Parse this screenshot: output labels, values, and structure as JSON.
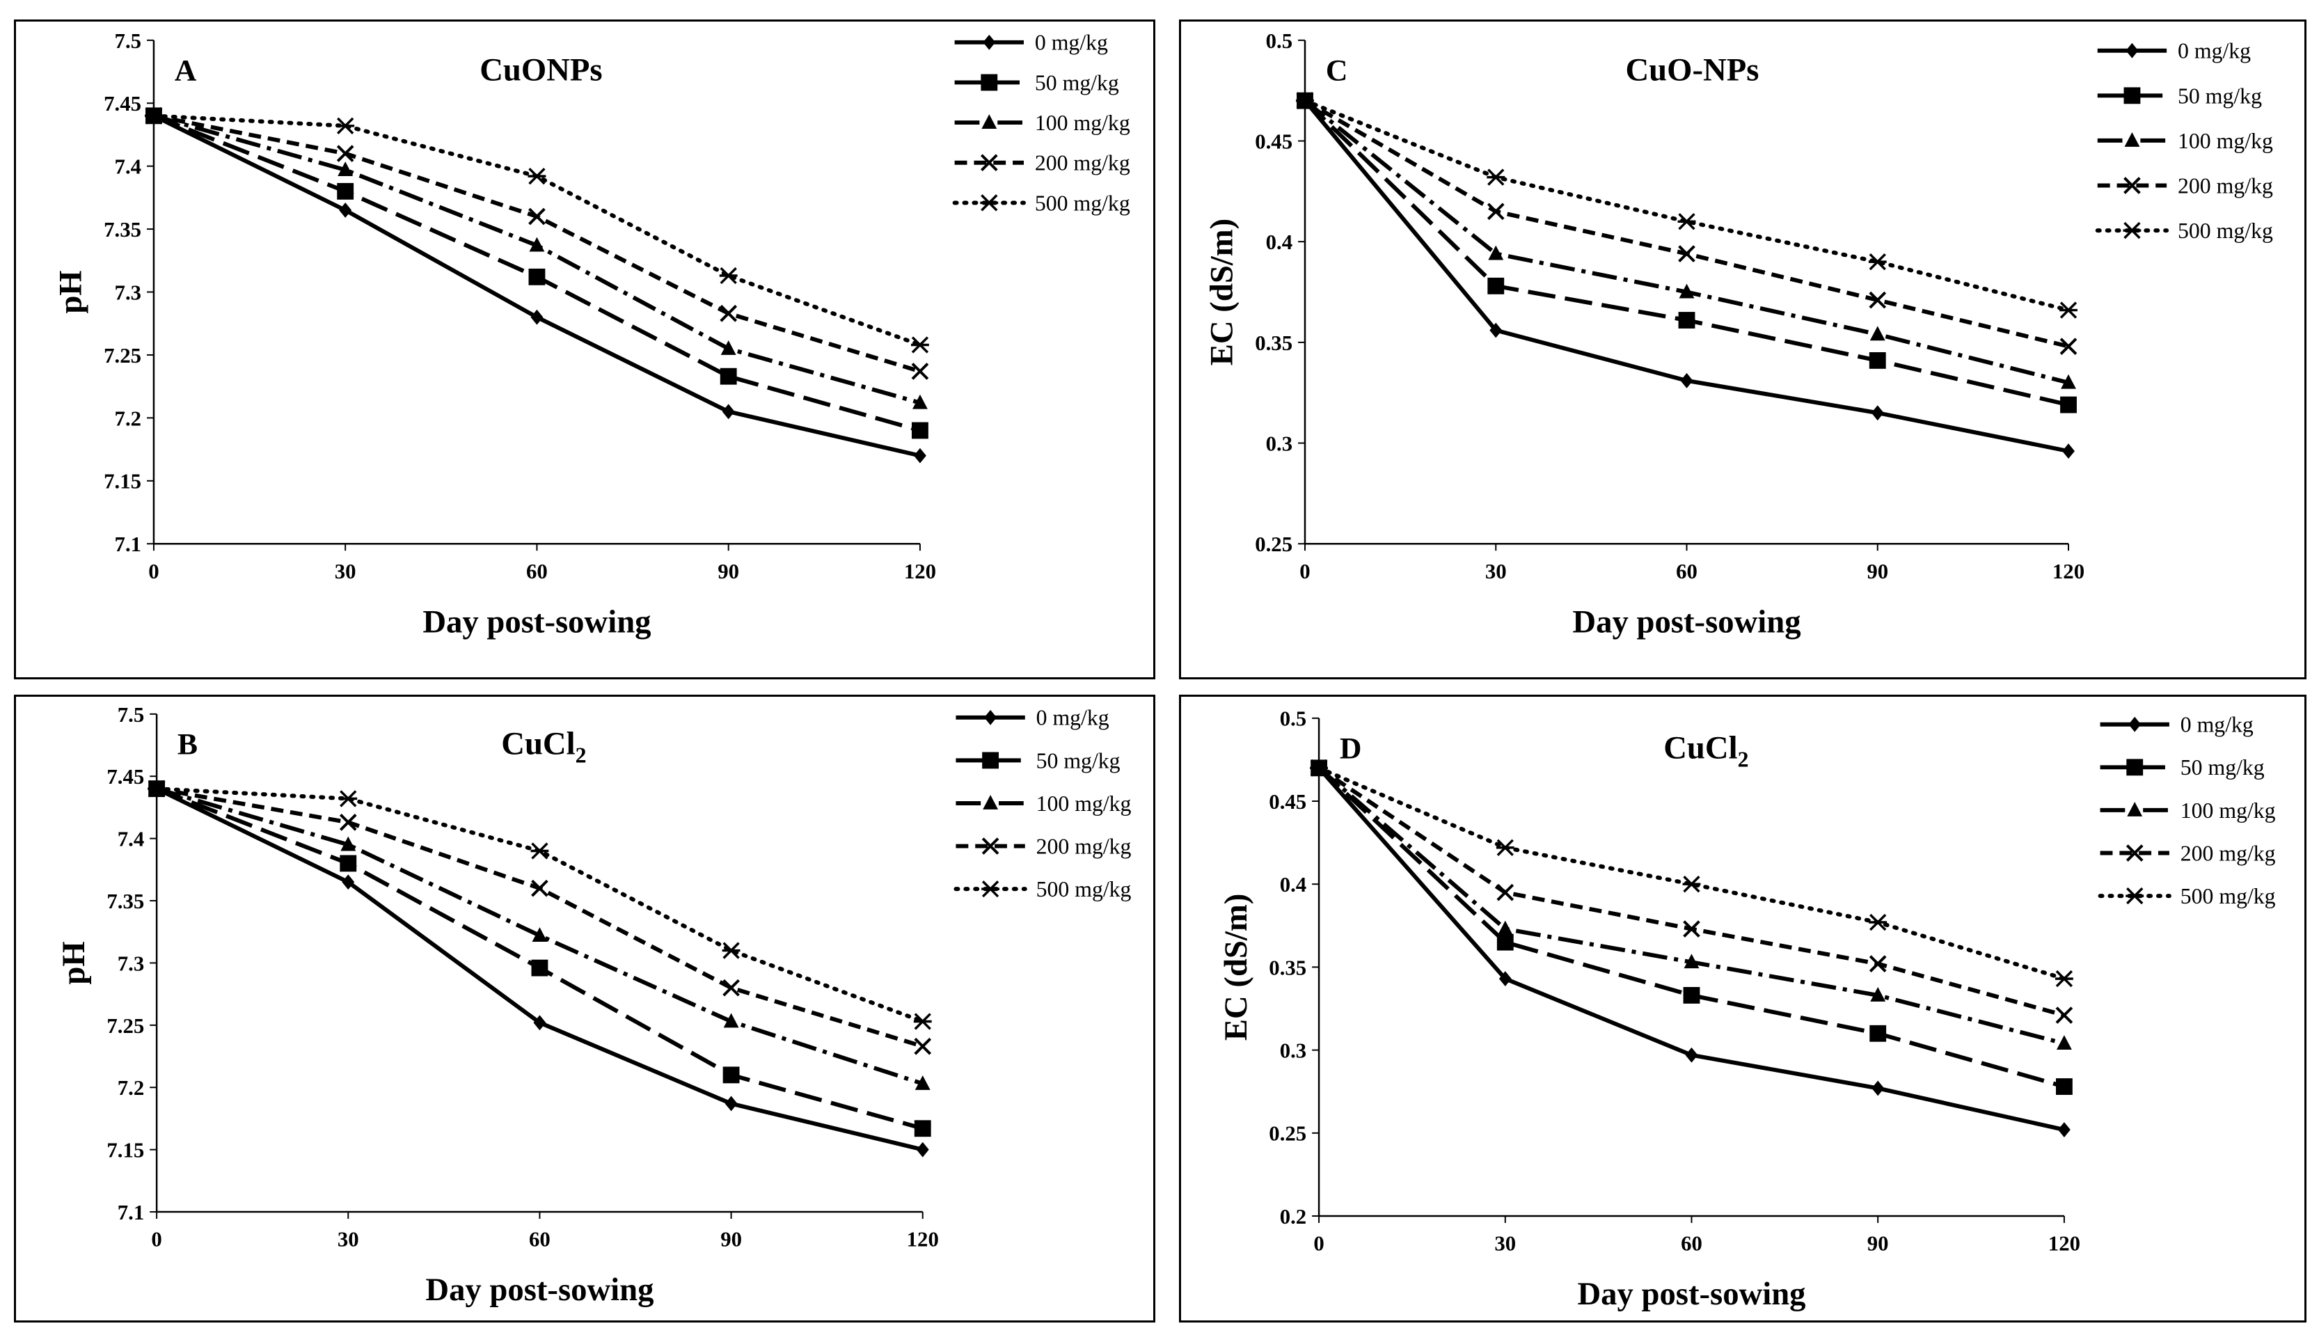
{
  "chart_data": [
    {
      "type": "line",
      "panel_letter": "A",
      "title": "CuONPs",
      "xlabel": "Day post-sowing",
      "ylabel": "pH",
      "x": [
        0,
        30,
        60,
        90,
        120
      ],
      "xticks": [
        "0",
        "30",
        "60",
        "90",
        "120"
      ],
      "ylim": [
        7.1,
        7.5
      ],
      "yticks": [
        "7.1",
        "7.15",
        "7.2",
        "7.25",
        "7.3",
        "7.35",
        "7.4",
        "7.45",
        "7.5"
      ],
      "legend_position": "top-right",
      "series": [
        {
          "name": "0 mg/kg",
          "values": [
            7.44,
            7.365,
            7.28,
            7.205,
            7.17
          ]
        },
        {
          "name": "50 mg/kg",
          "values": [
            7.44,
            7.38,
            7.312,
            7.233,
            7.19
          ]
        },
        {
          "name": "100 mg/kg",
          "values": [
            7.44,
            7.397,
            7.337,
            7.255,
            7.212
          ]
        },
        {
          "name": "200 mg/kg",
          "values": [
            7.44,
            7.41,
            7.36,
            7.283,
            7.237
          ]
        },
        {
          "name": "500 mg/kg",
          "values": [
            7.44,
            7.432,
            7.392,
            7.313,
            7.258
          ]
        }
      ]
    },
    {
      "type": "line",
      "panel_letter": "C",
      "title": "CuO-NPs",
      "xlabel": "Day post-sowing",
      "ylabel": "EC (dS/m)",
      "x": [
        0,
        30,
        60,
        90,
        120
      ],
      "xticks": [
        "0",
        "30",
        "60",
        "90",
        "120"
      ],
      "ylim": [
        0.25,
        0.5
      ],
      "yticks": [
        "0.25",
        "0.3",
        "0.35",
        "0.4",
        "0.45",
        "0.5"
      ],
      "legend_position": "top-right",
      "series": [
        {
          "name": "0 mg/kg",
          "values": [
            0.47,
            0.356,
            0.331,
            0.315,
            0.296
          ]
        },
        {
          "name": "50 mg/kg",
          "values": [
            0.47,
            0.378,
            0.361,
            0.341,
            0.319
          ]
        },
        {
          "name": "100 mg/kg",
          "values": [
            0.47,
            0.394,
            0.375,
            0.354,
            0.33
          ]
        },
        {
          "name": "200 mg/kg",
          "values": [
            0.47,
            0.415,
            0.394,
            0.371,
            0.348
          ]
        },
        {
          "name": "500 mg/kg",
          "values": [
            0.47,
            0.432,
            0.41,
            0.39,
            0.366
          ]
        }
      ]
    },
    {
      "type": "line",
      "panel_letter": "B",
      "title": "CuCl",
      "title_subscript": "2",
      "xlabel": "Day post-sowing",
      "ylabel": "pH",
      "x": [
        0,
        30,
        60,
        90,
        120
      ],
      "xticks": [
        "0",
        "30",
        "60",
        "90",
        "120"
      ],
      "ylim": [
        7.1,
        7.5
      ],
      "yticks": [
        "7.1",
        "7.15",
        "7.2",
        "7.25",
        "7.3",
        "7.35",
        "7.4",
        "7.45",
        "7.5"
      ],
      "legend_position": "top-right",
      "series": [
        {
          "name": "0 mg/kg",
          "values": [
            7.44,
            7.365,
            7.252,
            7.187,
            7.15
          ]
        },
        {
          "name": "50 mg/kg",
          "values": [
            7.44,
            7.38,
            7.296,
            7.21,
            7.167
          ]
        },
        {
          "name": "100 mg/kg",
          "values": [
            7.44,
            7.395,
            7.322,
            7.253,
            7.203
          ]
        },
        {
          "name": "200 mg/kg",
          "values": [
            7.44,
            7.413,
            7.36,
            7.28,
            7.233
          ]
        },
        {
          "name": "500 mg/kg",
          "values": [
            7.44,
            7.432,
            7.39,
            7.31,
            7.253
          ]
        }
      ]
    },
    {
      "type": "line",
      "panel_letter": "D",
      "title": "CuCl",
      "title_subscript": "2",
      "xlabel": "Day post-sowing",
      "ylabel": "EC (dS/m)",
      "x": [
        0,
        30,
        60,
        90,
        120
      ],
      "xticks": [
        "0",
        "30",
        "60",
        "90",
        "120"
      ],
      "ylim": [
        0.2,
        0.5
      ],
      "yticks": [
        "0.2",
        "0.25",
        "0.3",
        "0.35",
        "0.4",
        "0.45",
        "0.5"
      ],
      "legend_position": "top-right",
      "series": [
        {
          "name": "0 mg/kg",
          "values": [
            0.47,
            0.343,
            0.297,
            0.277,
            0.252
          ]
        },
        {
          "name": "50 mg/kg",
          "values": [
            0.47,
            0.365,
            0.333,
            0.31,
            0.278
          ]
        },
        {
          "name": "100 mg/kg",
          "values": [
            0.47,
            0.373,
            0.353,
            0.333,
            0.304
          ]
        },
        {
          "name": "200 mg/kg",
          "values": [
            0.47,
            0.395,
            0.373,
            0.352,
            0.321
          ]
        },
        {
          "name": "500 mg/kg",
          "values": [
            0.47,
            0.422,
            0.4,
            0.377,
            0.343
          ]
        }
      ]
    }
  ]
}
